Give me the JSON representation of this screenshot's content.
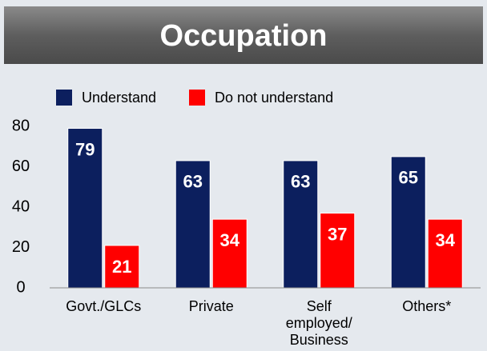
{
  "chart_data": {
    "type": "bar",
    "title": "Occupation",
    "categories": [
      "Govt./GLCs",
      "Private",
      "Self employed/ Business",
      "Others*"
    ],
    "series": [
      {
        "name": "Understand",
        "color": "#0c1f5e",
        "values": [
          79,
          63,
          63,
          65
        ]
      },
      {
        "name": "Do not understand",
        "color": "#ff0000",
        "values": [
          21,
          34,
          37,
          34
        ]
      }
    ],
    "ylim": [
      0,
      80
    ],
    "yticks": [
      0,
      20,
      40,
      60,
      80
    ],
    "grid": false,
    "legend": "top"
  }
}
